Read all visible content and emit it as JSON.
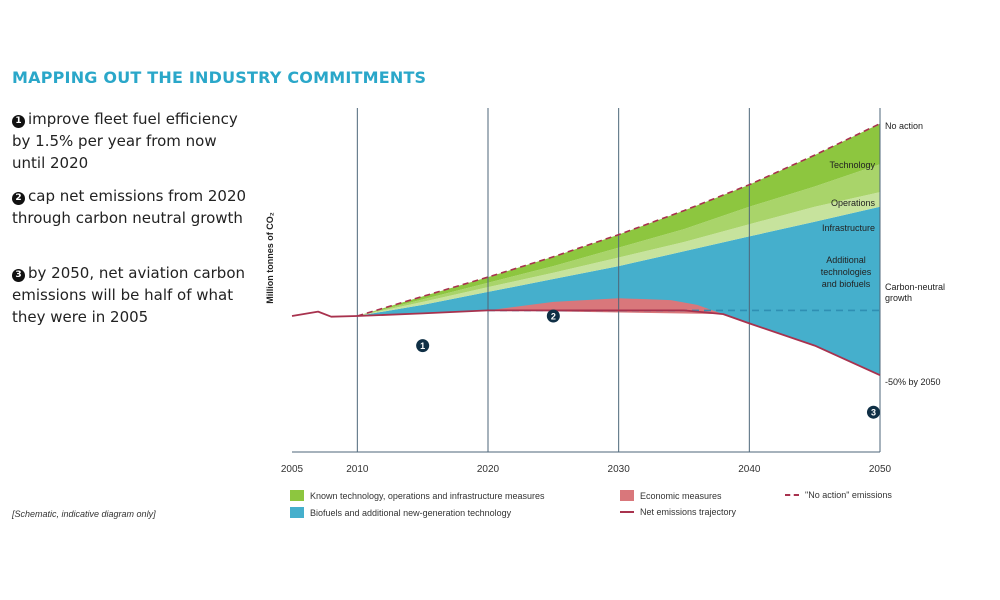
{
  "title": "MAPPING OUT THE INDUSTRY COMMITMENTS",
  "commitments": [
    {
      "number": "1",
      "text": "improve fleet fuel efficiency by 1.5% per year from now until 2020"
    },
    {
      "number": "2",
      "text": "cap net emissions from 2020 through carbon neutral growth"
    },
    {
      "number": "3",
      "text": "by 2050, net aviation carbon emissions will be half of what they were in 2005"
    }
  ],
  "note": "[Schematic, indicative diagram only]",
  "colors": {
    "title": "#2aa7c9",
    "technology": "#8dc63f",
    "operations": "#a9d46a",
    "infrastructure": "#c7e39d",
    "biofuels": "#45afcc",
    "economic": "#d9777b",
    "line": "#a8324e",
    "grid": "#4d6679",
    "dash_neutral": "#2f8fb3"
  },
  "chart_data": {
    "type": "area",
    "ylabel": "Million tonnes of CO₂",
    "x_ticks": [
      "2005",
      "2010",
      "2020",
      "2030",
      "2040",
      "2050"
    ],
    "x_tick_values": [
      2005,
      2010,
      2020,
      2030,
      2040,
      2050
    ],
    "xlim": [
      2005,
      2050
    ],
    "schematic": true,
    "series": [
      {
        "name": "\"No action\" emissions",
        "style": "dashed",
        "x": [
          2005,
          2007,
          2008,
          2010,
          2015,
          2020,
          2025,
          2030,
          2035,
          2040,
          2045,
          2050
        ],
        "y": [
          1.0,
          1.12,
          0.98,
          1.0,
          1.53,
          2.05,
          2.6,
          3.2,
          3.85,
          4.55,
          5.35,
          6.2
        ]
      },
      {
        "name": "Net emissions trajectory",
        "style": "solid",
        "x": [
          2005,
          2007,
          2008,
          2010,
          2015,
          2020,
          2025,
          2030,
          2035,
          2038,
          2040,
          2045,
          2050
        ],
        "y": [
          1.0,
          1.12,
          0.98,
          1.0,
          1.07,
          1.15,
          1.15,
          1.15,
          1.15,
          1.05,
          0.8,
          0.2,
          -0.6
        ]
      }
    ],
    "stack_tops": {
      "x": [
        2010,
        2015,
        2020,
        2025,
        2030,
        2035,
        2040,
        2045,
        2050
      ],
      "technology": [
        1.0,
        1.53,
        2.05,
        2.6,
        3.2,
        3.85,
        4.55,
        5.35,
        6.2
      ],
      "operations": [
        1.0,
        1.45,
        1.9,
        2.35,
        2.85,
        3.35,
        3.95,
        4.5,
        5.1
      ],
      "infrastructure": [
        1.0,
        1.38,
        1.78,
        2.17,
        2.58,
        3.0,
        3.48,
        3.95,
        4.35
      ],
      "additional": [
        1.0,
        1.3,
        1.65,
        2.0,
        2.35,
        2.75,
        3.15,
        3.55,
        3.95
      ]
    },
    "economic_top": {
      "x": [
        2020,
        2025,
        2030,
        2034,
        2036,
        2038
      ],
      "y": [
        1.15,
        1.38,
        1.48,
        1.43,
        1.3,
        1.05
      ]
    },
    "carbon_neutral_level": 1.15,
    "right_labels": [
      "No action",
      "Technology",
      "Operations",
      "Infrastructure",
      "Additional technologies and biofuels",
      "Carbon-neutral growth",
      "-50% by 2050"
    ],
    "markers": [
      {
        "label": "1",
        "x": 2015,
        "y": 0.2
      },
      {
        "label": "2",
        "x": 2025,
        "y": 1.0
      },
      {
        "label": "3",
        "x": 2049.5,
        "y": -1.6
      }
    ],
    "legend": [
      {
        "label": "Known technology, operations and infrastructure measures",
        "kind": "swatch",
        "color_key": "technology"
      },
      {
        "label": "Biofuels and additional new-generation technology",
        "kind": "swatch",
        "color_key": "biofuels"
      },
      {
        "label": "Economic measures",
        "kind": "swatch",
        "color_key": "economic"
      },
      {
        "label": "Net emissions trajectory",
        "kind": "line"
      },
      {
        "label": "\"No action\" emissions",
        "kind": "dashed"
      }
    ]
  }
}
